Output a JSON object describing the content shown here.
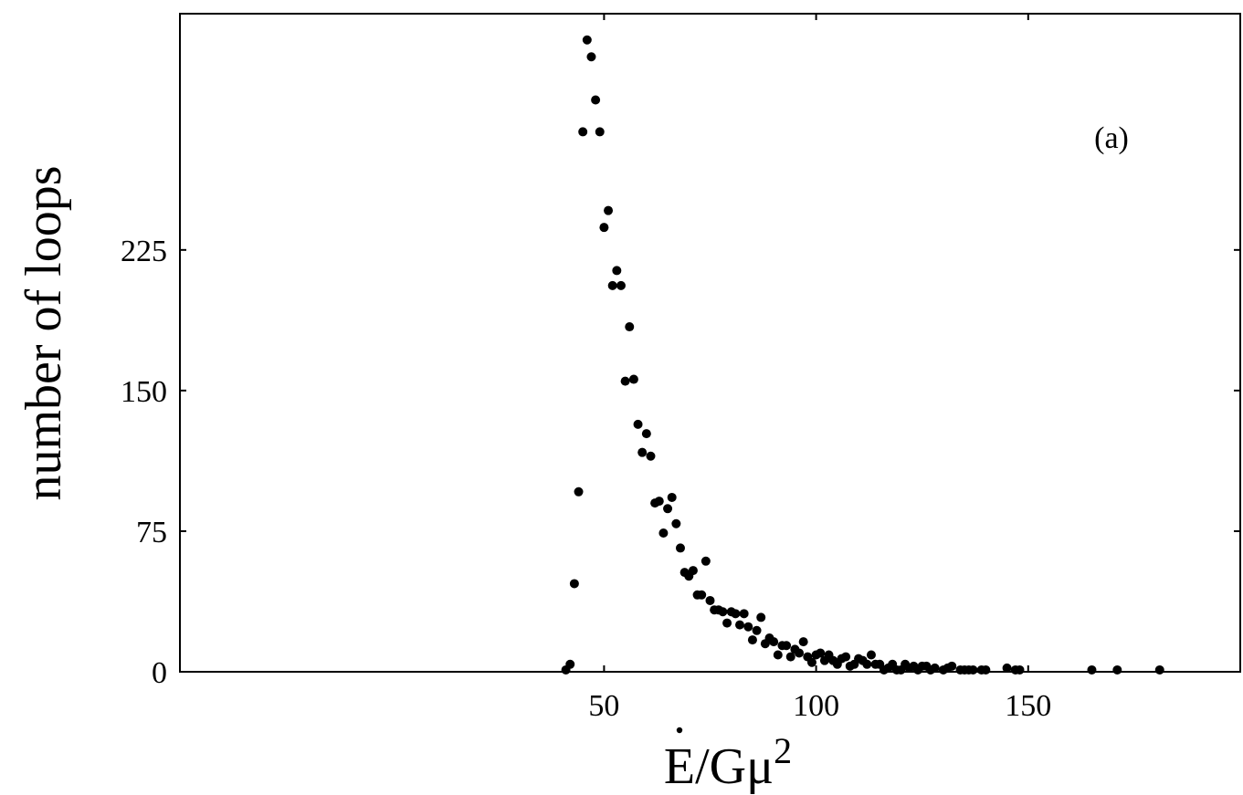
{
  "chart_data": {
    "type": "scatter",
    "title": "",
    "annotation": "(a)",
    "xlabel": {
      "base": "E",
      "rest": "/Gμ",
      "sup": "2"
    },
    "ylabel": "number of loops",
    "xlim": [
      -50,
      200
    ],
    "ylim": [
      0,
      351
    ],
    "xticks": [
      50,
      100,
      150
    ],
    "yticks": [
      0,
      75,
      150,
      225
    ],
    "grid": false,
    "points": [
      [
        41,
        1
      ],
      [
        42,
        4
      ],
      [
        43,
        47
      ],
      [
        44,
        96
      ],
      [
        45,
        288
      ],
      [
        46,
        337
      ],
      [
        47,
        328
      ],
      [
        48,
        305
      ],
      [
        49,
        288
      ],
      [
        50,
        237
      ],
      [
        51,
        246
      ],
      [
        52,
        206
      ],
      [
        53,
        214
      ],
      [
        54,
        206
      ],
      [
        55,
        155
      ],
      [
        56,
        184
      ],
      [
        57,
        156
      ],
      [
        58,
        132
      ],
      [
        59,
        117
      ],
      [
        60,
        127
      ],
      [
        61,
        115
      ],
      [
        62,
        90
      ],
      [
        63,
        91
      ],
      [
        64,
        74
      ],
      [
        65,
        87
      ],
      [
        66,
        93
      ],
      [
        67,
        79
      ],
      [
        68,
        66
      ],
      [
        69,
        53
      ],
      [
        70,
        51
      ],
      [
        71,
        54
      ],
      [
        72,
        41
      ],
      [
        73,
        41
      ],
      [
        74,
        59
      ],
      [
        75,
        38
      ],
      [
        76,
        33
      ],
      [
        77,
        33
      ],
      [
        78,
        32
      ],
      [
        79,
        26
      ],
      [
        80,
        32
      ],
      [
        81,
        31
      ],
      [
        82,
        25
      ],
      [
        83,
        31
      ],
      [
        84,
        24
      ],
      [
        85,
        17
      ],
      [
        86,
        22
      ],
      [
        87,
        29
      ],
      [
        88,
        15
      ],
      [
        89,
        18
      ],
      [
        90,
        16
      ],
      [
        91,
        9
      ],
      [
        92,
        14
      ],
      [
        93,
        14
      ],
      [
        94,
        8
      ],
      [
        95,
        12
      ],
      [
        96,
        10
      ],
      [
        97,
        16
      ],
      [
        98,
        8
      ],
      [
        99,
        5
      ],
      [
        100,
        9
      ],
      [
        101,
        10
      ],
      [
        102,
        6
      ],
      [
        103,
        9
      ],
      [
        104,
        6
      ],
      [
        105,
        4
      ],
      [
        106,
        7
      ],
      [
        107,
        8
      ],
      [
        108,
        3
      ],
      [
        109,
        4
      ],
      [
        110,
        7
      ],
      [
        111,
        6
      ],
      [
        112,
        4
      ],
      [
        113,
        9
      ],
      [
        114,
        4
      ],
      [
        115,
        4
      ],
      [
        116,
        1
      ],
      [
        117,
        2
      ],
      [
        118,
        4
      ],
      [
        119,
        1
      ],
      [
        120,
        1
      ],
      [
        121,
        4
      ],
      [
        122,
        2
      ],
      [
        123,
        3
      ],
      [
        124,
        1
      ],
      [
        125,
        3
      ],
      [
        126,
        3
      ],
      [
        127,
        1
      ],
      [
        128,
        2
      ],
      [
        130,
        1
      ],
      [
        131,
        2
      ],
      [
        132,
        3
      ],
      [
        134,
        1
      ],
      [
        135,
        1
      ],
      [
        136,
        1
      ],
      [
        137,
        1
      ],
      [
        139,
        1
      ],
      [
        140,
        1
      ],
      [
        145,
        2
      ],
      [
        147,
        1
      ],
      [
        148,
        1
      ],
      [
        165,
        1
      ],
      [
        171,
        1
      ],
      [
        181,
        1
      ]
    ]
  }
}
